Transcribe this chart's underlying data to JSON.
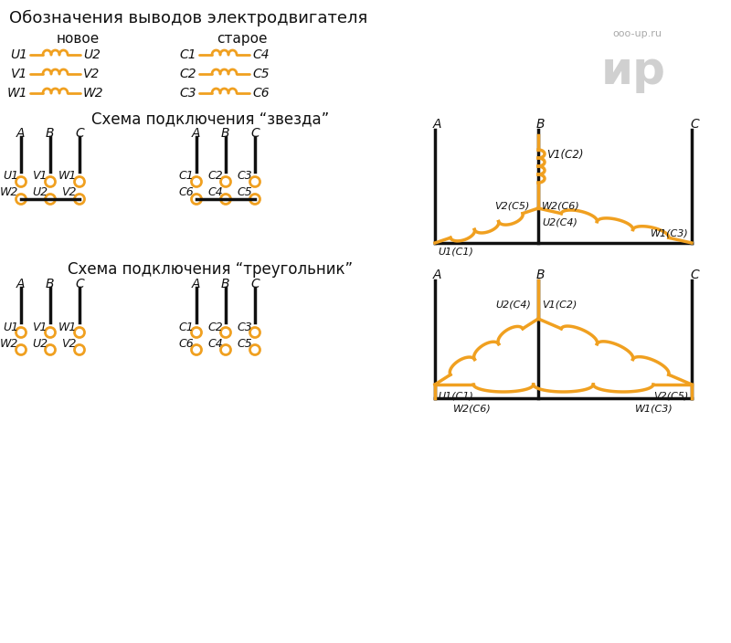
{
  "title": "Обозначения выводов электродвигателя",
  "new_label": "новое",
  "old_label": "старое",
  "orange": "#F0A020",
  "black": "#111111",
  "gray": "#aaaaaa",
  "bg": "#ffffff",
  "star_title": "Схема подключения “звезда”",
  "triangle_title": "Схема подключения “треугольник”",
  "watermark1": "ooo-up.ru",
  "watermark2": "ир"
}
